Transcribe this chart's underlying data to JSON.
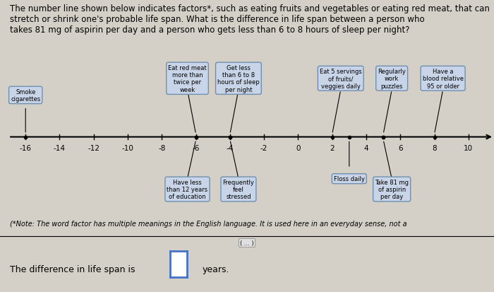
{
  "title_text": "The number line shown below indicates factors*, such as eating fruits and vegetables or eating red meat, that can\nstretch or shrink one's probable life span. What is the difference in life span between a person who\ntakes 81 mg of aspirin per day and a person who gets less than 6 to 8 hours of sleep per night?",
  "footnote": "(*Note: The word factor has multiple meanings in the English language. It is used here in an everyday sense, not a",
  "answer_text": "The difference in life span is",
  "answer_units": "years.",
  "xlim": [
    -17.5,
    11.5
  ],
  "tick_positions": [
    -16,
    -14,
    -12,
    -10,
    -8,
    -6,
    -4,
    -2,
    0,
    2,
    4,
    6,
    8,
    10
  ],
  "bg_color": "#d4d0c8",
  "box_facecolor": "#c8d4e8",
  "box_edgecolor": "#7090b0",
  "above_configs": [
    [
      "Smoke\ncigarettes",
      -16.0,
      2.0,
      -16
    ],
    [
      "Eat red meat\nmore than\ntwice per\nweek",
      -6.5,
      2.8,
      -6
    ],
    [
      "Get less\nthan 6 to 8\nhours of sleep\nper night",
      -3.5,
      2.8,
      -4
    ],
    [
      "Eat 5 servings\nof fruits/\nveggies daily",
      2.5,
      2.8,
      2
    ],
    [
      "Regularly\nwork\npuzzles",
      5.5,
      2.8,
      5
    ],
    [
      "Have a\nblood relative\n95 or older",
      8.5,
      2.8,
      8
    ]
  ],
  "below_configs": [
    [
      "Have less\nthan 12 years\nof education",
      -6.5,
      -2.5,
      -6
    ],
    [
      "Frequently\nfeel\nstressed",
      -3.5,
      -2.5,
      -4
    ],
    [
      "Floss daily",
      3.0,
      -2.0,
      3
    ],
    [
      "Take 81 mg\nof aspirin\nper day",
      5.5,
      -2.5,
      5
    ]
  ]
}
